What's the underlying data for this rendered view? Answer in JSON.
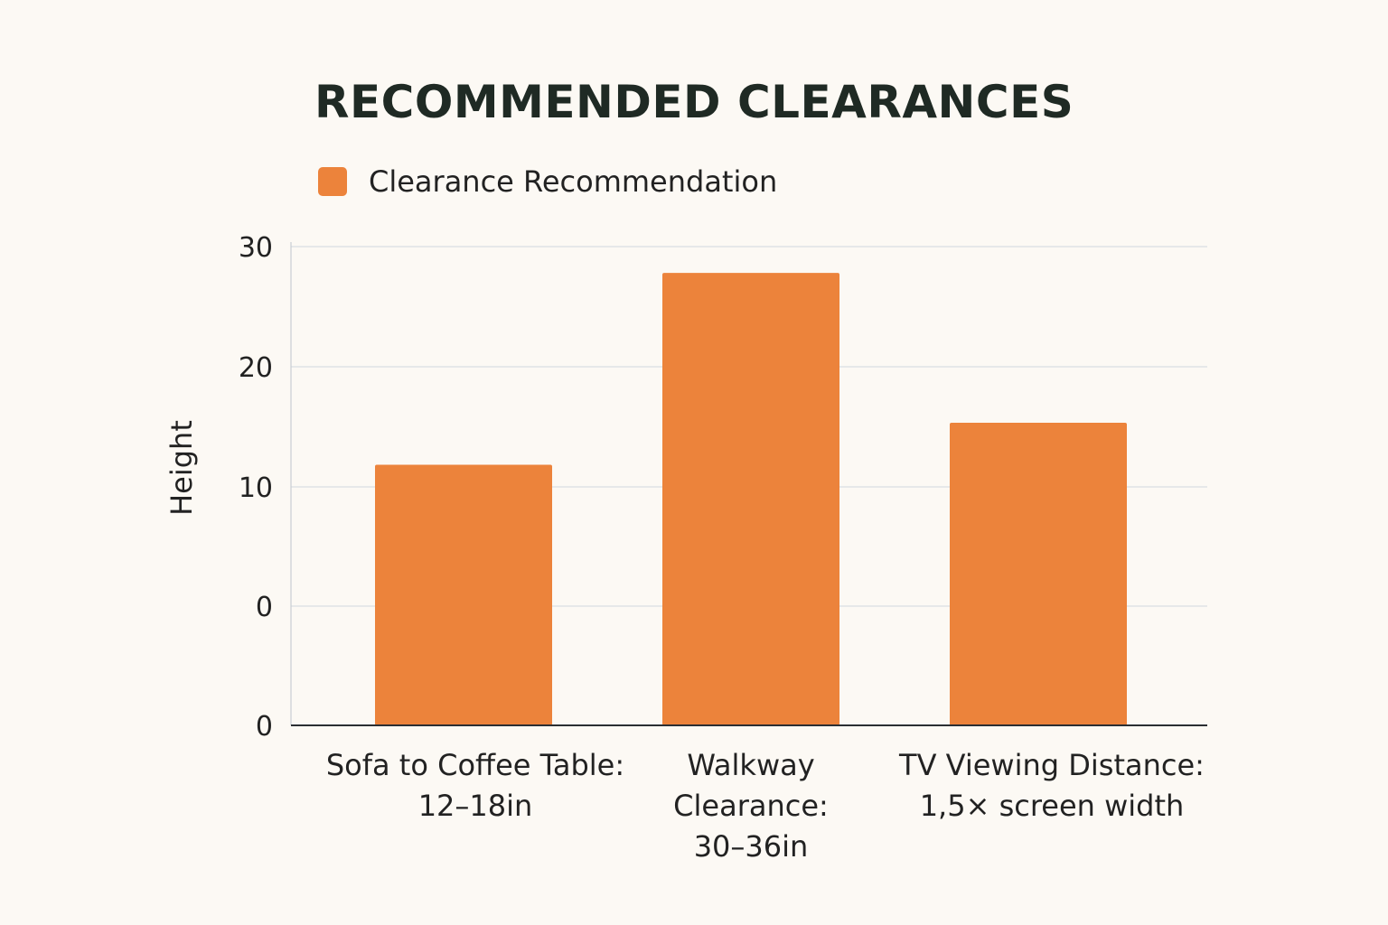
{
  "chart_data": {
    "type": "bar",
    "title": "RECOMMENDED CLEARANCES",
    "ylabel": "Height",
    "xlabel": "",
    "legend": {
      "position": "top-left",
      "entries": [
        "Clearance Recommendation"
      ]
    },
    "grid": true,
    "y_tick_labels": [
      "0",
      "0",
      "10",
      "20",
      "30"
    ],
    "categories": [
      [
        "Sofa to Coffee Table:",
        "12–18in"
      ],
      [
        "Walkway",
        "Clearance:",
        "30–36in"
      ],
      [
        "TV Viewing Distance:",
        "1,5× screen width"
      ]
    ],
    "series": [
      {
        "name": "Clearance Recommendation",
        "values": [
          11.8,
          27.8,
          15.3
        ],
        "color": "#ec833b"
      }
    ]
  }
}
